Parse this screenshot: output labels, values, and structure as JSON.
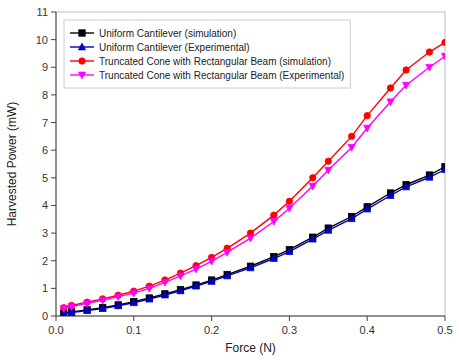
{
  "chart_data": {
    "type": "line",
    "xlabel": "Force (N)",
    "ylabel": "Harvested Power (mW)",
    "xlim": [
      0,
      0.5
    ],
    "ylim": [
      0,
      11
    ],
    "xticks": [
      {
        "value": 0.0,
        "label": "0.0"
      },
      {
        "value": 0.1,
        "label": "0.1"
      },
      {
        "value": 0.2,
        "label": "0.2"
      },
      {
        "value": 0.3,
        "label": "0.3"
      },
      {
        "value": 0.4,
        "label": "0.4"
      },
      {
        "value": 0.5,
        "label": "0.5"
      }
    ],
    "yticks": [
      0,
      1,
      2,
      3,
      4,
      5,
      6,
      7,
      8,
      9,
      10,
      11
    ],
    "legend": "upper left",
    "x": [
      0.01,
      0.02,
      0.04,
      0.06,
      0.08,
      0.1,
      0.12,
      0.14,
      0.16,
      0.18,
      0.2,
      0.22,
      0.25,
      0.28,
      0.3,
      0.33,
      0.35,
      0.38,
      0.4,
      0.43,
      0.45,
      0.48,
      0.5
    ],
    "series": [
      {
        "name": "Uniform Cantilever (simulation)",
        "color": "#000000",
        "marker": "square",
        "values": [
          0.1,
          0.15,
          0.22,
          0.3,
          0.4,
          0.52,
          0.65,
          0.8,
          0.95,
          1.12,
          1.3,
          1.5,
          1.8,
          2.15,
          2.4,
          2.85,
          3.18,
          3.6,
          3.95,
          4.45,
          4.75,
          5.1,
          5.4
        ]
      },
      {
        "name": "Uniform Cantilever (Experimental)",
        "color": "#0000cc",
        "marker": "triangle-up",
        "values": [
          0.08,
          0.12,
          0.2,
          0.27,
          0.37,
          0.48,
          0.61,
          0.76,
          0.91,
          1.08,
          1.25,
          1.45,
          1.74,
          2.08,
          2.33,
          2.78,
          3.1,
          3.52,
          3.87,
          4.36,
          4.67,
          5.02,
          5.3
        ]
      },
      {
        "name": "Truncated Cone with Rectangular Beam (simulation)",
        "color": "#ff0000",
        "marker": "circle",
        "values": [
          0.3,
          0.38,
          0.5,
          0.62,
          0.75,
          0.9,
          1.08,
          1.3,
          1.55,
          1.82,
          2.12,
          2.45,
          3.0,
          3.65,
          4.15,
          5.0,
          5.6,
          6.5,
          7.25,
          8.25,
          8.9,
          9.55,
          9.9
        ]
      },
      {
        "name": "Truncated Cone with Rectangular Beam (Experimental)",
        "color": "#ff00ff",
        "marker": "triangle-down",
        "values": [
          0.28,
          0.34,
          0.46,
          0.57,
          0.7,
          0.83,
          1.0,
          1.22,
          1.45,
          1.7,
          1.98,
          2.3,
          2.82,
          3.42,
          3.9,
          4.7,
          5.28,
          6.1,
          6.8,
          7.75,
          8.35,
          9.0,
          9.4
        ]
      }
    ]
  }
}
